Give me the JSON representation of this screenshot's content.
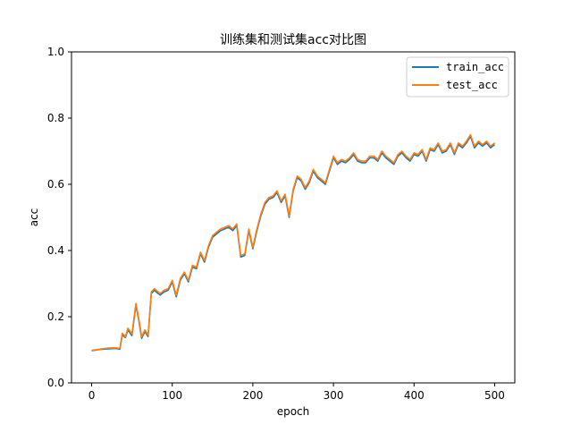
{
  "chart_data": {
    "type": "line",
    "title": "训练集和测试集acc对比图",
    "xlabel": "epoch",
    "ylabel": "acc",
    "xlim": [
      -25,
      525
    ],
    "ylim": [
      0.0,
      1.0
    ],
    "xticks": [
      "0",
      "100",
      "200",
      "300",
      "400",
      "500"
    ],
    "yticks": [
      "0.0",
      "0.2",
      "0.4",
      "0.6",
      "0.8",
      "1.0"
    ],
    "grid": false,
    "legend_position": "upper-right",
    "series": [
      {
        "name": "train_acc",
        "color": "#1f77b4",
        "x": [
          0,
          10,
          20,
          30,
          35,
          38,
          42,
          45,
          50,
          55,
          58,
          62,
          66,
          70,
          74,
          78,
          80,
          85,
          90,
          95,
          100,
          105,
          110,
          115,
          120,
          125,
          130,
          135,
          140,
          145,
          150,
          155,
          160,
          165,
          170,
          175,
          180,
          185,
          190,
          195,
          200,
          205,
          210,
          215,
          220,
          225,
          230,
          235,
          240,
          245,
          250,
          255,
          260,
          265,
          270,
          275,
          280,
          285,
          290,
          295,
          300,
          305,
          310,
          315,
          320,
          325,
          330,
          335,
          340,
          345,
          350,
          355,
          360,
          365,
          370,
          375,
          380,
          385,
          390,
          395,
          400,
          405,
          410,
          415,
          420,
          425,
          430,
          435,
          440,
          445,
          450,
          455,
          460,
          465,
          470,
          475,
          480,
          485,
          490,
          495,
          500
        ],
        "y": [
          0.097,
          0.101,
          0.103,
          0.104,
          0.102,
          0.145,
          0.137,
          0.16,
          0.143,
          0.235,
          0.195,
          0.135,
          0.155,
          0.14,
          0.27,
          0.28,
          0.275,
          0.265,
          0.275,
          0.28,
          0.305,
          0.26,
          0.31,
          0.33,
          0.305,
          0.35,
          0.345,
          0.39,
          0.365,
          0.41,
          0.44,
          0.45,
          0.46,
          0.465,
          0.47,
          0.46,
          0.475,
          0.38,
          0.385,
          0.46,
          0.405,
          0.46,
          0.505,
          0.54,
          0.555,
          0.56,
          0.575,
          0.545,
          0.565,
          0.5,
          0.58,
          0.62,
          0.61,
          0.585,
          0.605,
          0.64,
          0.62,
          0.61,
          0.6,
          0.64,
          0.68,
          0.66,
          0.67,
          0.665,
          0.675,
          0.69,
          0.67,
          0.665,
          0.665,
          0.68,
          0.68,
          0.67,
          0.695,
          0.68,
          0.67,
          0.66,
          0.685,
          0.695,
          0.68,
          0.67,
          0.69,
          0.685,
          0.7,
          0.67,
          0.705,
          0.7,
          0.72,
          0.695,
          0.7,
          0.72,
          0.69,
          0.72,
          0.71,
          0.725,
          0.745,
          0.71,
          0.725,
          0.715,
          0.725,
          0.71,
          0.72
        ]
      },
      {
        "name": "test_acc",
        "color": "#ff7f0e",
        "x": [
          0,
          10,
          20,
          30,
          35,
          38,
          42,
          45,
          50,
          55,
          58,
          62,
          66,
          70,
          74,
          78,
          80,
          85,
          90,
          95,
          100,
          105,
          110,
          115,
          120,
          125,
          130,
          135,
          140,
          145,
          150,
          155,
          160,
          165,
          170,
          175,
          180,
          185,
          190,
          195,
          200,
          205,
          210,
          215,
          220,
          225,
          230,
          235,
          240,
          245,
          250,
          255,
          260,
          265,
          270,
          275,
          280,
          285,
          290,
          295,
          300,
          305,
          310,
          315,
          320,
          325,
          330,
          335,
          340,
          345,
          350,
          355,
          360,
          365,
          370,
          375,
          380,
          385,
          390,
          395,
          400,
          405,
          410,
          415,
          420,
          425,
          430,
          435,
          440,
          445,
          450,
          455,
          460,
          465,
          470,
          475,
          480,
          485,
          490,
          495,
          500
        ],
        "y": [
          0.098,
          0.102,
          0.105,
          0.106,
          0.104,
          0.15,
          0.14,
          0.165,
          0.148,
          0.24,
          0.2,
          0.14,
          0.16,
          0.145,
          0.275,
          0.285,
          0.28,
          0.27,
          0.28,
          0.285,
          0.31,
          0.265,
          0.315,
          0.335,
          0.31,
          0.355,
          0.35,
          0.395,
          0.37,
          0.415,
          0.445,
          0.455,
          0.465,
          0.47,
          0.475,
          0.465,
          0.48,
          0.385,
          0.39,
          0.465,
          0.41,
          0.465,
          0.51,
          0.545,
          0.56,
          0.565,
          0.58,
          0.55,
          0.57,
          0.505,
          0.585,
          0.625,
          0.615,
          0.59,
          0.61,
          0.645,
          0.625,
          0.615,
          0.605,
          0.645,
          0.685,
          0.665,
          0.675,
          0.67,
          0.68,
          0.695,
          0.675,
          0.67,
          0.67,
          0.685,
          0.685,
          0.675,
          0.7,
          0.685,
          0.675,
          0.665,
          0.69,
          0.7,
          0.685,
          0.675,
          0.695,
          0.69,
          0.705,
          0.675,
          0.71,
          0.705,
          0.725,
          0.7,
          0.705,
          0.725,
          0.695,
          0.725,
          0.715,
          0.73,
          0.75,
          0.715,
          0.73,
          0.72,
          0.73,
          0.715,
          0.725
        ]
      }
    ]
  }
}
